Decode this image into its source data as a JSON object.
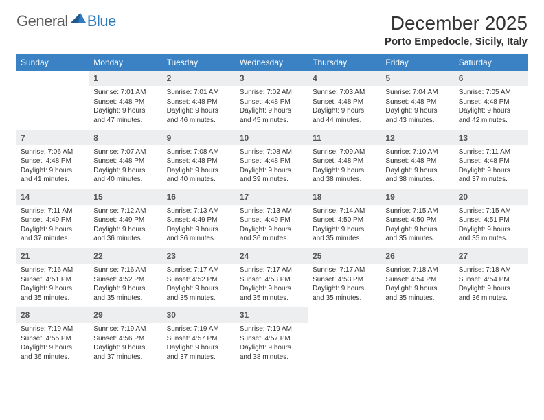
{
  "logo": {
    "text1": "General",
    "text2": "Blue"
  },
  "header": {
    "month_title": "December 2025",
    "location": "Porto Empedocle, Sicily, Italy"
  },
  "colors": {
    "header_bg": "#3b82c4",
    "header_text": "#ffffff",
    "daynum_bg": "#eceef0",
    "row_divider": "#3b82c4",
    "logo_gray": "#5a5a5a",
    "logo_blue": "#2f7bbf"
  },
  "weekdays": [
    "Sunday",
    "Monday",
    "Tuesday",
    "Wednesday",
    "Thursday",
    "Friday",
    "Saturday"
  ],
  "weeks": [
    [
      null,
      {
        "n": "1",
        "sr": "7:01 AM",
        "ss": "4:48 PM",
        "dl": "9 hours and 47 minutes."
      },
      {
        "n": "2",
        "sr": "7:01 AM",
        "ss": "4:48 PM",
        "dl": "9 hours and 46 minutes."
      },
      {
        "n": "3",
        "sr": "7:02 AM",
        "ss": "4:48 PM",
        "dl": "9 hours and 45 minutes."
      },
      {
        "n": "4",
        "sr": "7:03 AM",
        "ss": "4:48 PM",
        "dl": "9 hours and 44 minutes."
      },
      {
        "n": "5",
        "sr": "7:04 AM",
        "ss": "4:48 PM",
        "dl": "9 hours and 43 minutes."
      },
      {
        "n": "6",
        "sr": "7:05 AM",
        "ss": "4:48 PM",
        "dl": "9 hours and 42 minutes."
      }
    ],
    [
      {
        "n": "7",
        "sr": "7:06 AM",
        "ss": "4:48 PM",
        "dl": "9 hours and 41 minutes."
      },
      {
        "n": "8",
        "sr": "7:07 AM",
        "ss": "4:48 PM",
        "dl": "9 hours and 40 minutes."
      },
      {
        "n": "9",
        "sr": "7:08 AM",
        "ss": "4:48 PM",
        "dl": "9 hours and 40 minutes."
      },
      {
        "n": "10",
        "sr": "7:08 AM",
        "ss": "4:48 PM",
        "dl": "9 hours and 39 minutes."
      },
      {
        "n": "11",
        "sr": "7:09 AM",
        "ss": "4:48 PM",
        "dl": "9 hours and 38 minutes."
      },
      {
        "n": "12",
        "sr": "7:10 AM",
        "ss": "4:48 PM",
        "dl": "9 hours and 38 minutes."
      },
      {
        "n": "13",
        "sr": "7:11 AM",
        "ss": "4:48 PM",
        "dl": "9 hours and 37 minutes."
      }
    ],
    [
      {
        "n": "14",
        "sr": "7:11 AM",
        "ss": "4:49 PM",
        "dl": "9 hours and 37 minutes."
      },
      {
        "n": "15",
        "sr": "7:12 AM",
        "ss": "4:49 PM",
        "dl": "9 hours and 36 minutes."
      },
      {
        "n": "16",
        "sr": "7:13 AM",
        "ss": "4:49 PM",
        "dl": "9 hours and 36 minutes."
      },
      {
        "n": "17",
        "sr": "7:13 AM",
        "ss": "4:49 PM",
        "dl": "9 hours and 36 minutes."
      },
      {
        "n": "18",
        "sr": "7:14 AM",
        "ss": "4:50 PM",
        "dl": "9 hours and 35 minutes."
      },
      {
        "n": "19",
        "sr": "7:15 AM",
        "ss": "4:50 PM",
        "dl": "9 hours and 35 minutes."
      },
      {
        "n": "20",
        "sr": "7:15 AM",
        "ss": "4:51 PM",
        "dl": "9 hours and 35 minutes."
      }
    ],
    [
      {
        "n": "21",
        "sr": "7:16 AM",
        "ss": "4:51 PM",
        "dl": "9 hours and 35 minutes."
      },
      {
        "n": "22",
        "sr": "7:16 AM",
        "ss": "4:52 PM",
        "dl": "9 hours and 35 minutes."
      },
      {
        "n": "23",
        "sr": "7:17 AM",
        "ss": "4:52 PM",
        "dl": "9 hours and 35 minutes."
      },
      {
        "n": "24",
        "sr": "7:17 AM",
        "ss": "4:53 PM",
        "dl": "9 hours and 35 minutes."
      },
      {
        "n": "25",
        "sr": "7:17 AM",
        "ss": "4:53 PM",
        "dl": "9 hours and 35 minutes."
      },
      {
        "n": "26",
        "sr": "7:18 AM",
        "ss": "4:54 PM",
        "dl": "9 hours and 35 minutes."
      },
      {
        "n": "27",
        "sr": "7:18 AM",
        "ss": "4:54 PM",
        "dl": "9 hours and 36 minutes."
      }
    ],
    [
      {
        "n": "28",
        "sr": "7:19 AM",
        "ss": "4:55 PM",
        "dl": "9 hours and 36 minutes."
      },
      {
        "n": "29",
        "sr": "7:19 AM",
        "ss": "4:56 PM",
        "dl": "9 hours and 37 minutes."
      },
      {
        "n": "30",
        "sr": "7:19 AM",
        "ss": "4:57 PM",
        "dl": "9 hours and 37 minutes."
      },
      {
        "n": "31",
        "sr": "7:19 AM",
        "ss": "4:57 PM",
        "dl": "9 hours and 38 minutes."
      },
      null,
      null,
      null
    ]
  ],
  "labels": {
    "sunrise": "Sunrise:",
    "sunset": "Sunset:",
    "daylight": "Daylight:"
  }
}
